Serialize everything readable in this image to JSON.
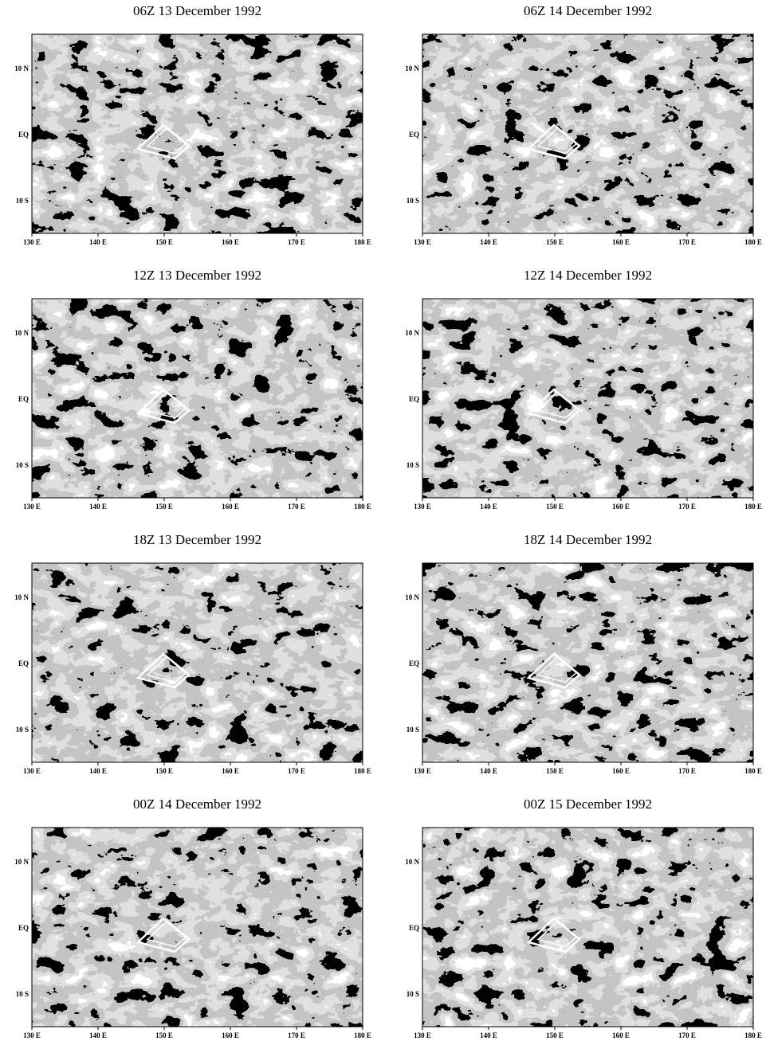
{
  "panels": [
    {
      "title": "06Z 13 December 1992"
    },
    {
      "title": "06Z 14 December 1992"
    },
    {
      "title": "12Z 13 December 1992"
    },
    {
      "title": "12Z 14 December 1992"
    },
    {
      "title": "18Z 13 December 1992"
    },
    {
      "title": "18Z 14 December 1992"
    },
    {
      "title": "00Z 14 December 1992"
    },
    {
      "title": "00Z 15 December 1992"
    }
  ],
  "y_labels": [
    "10 N",
    "EQ",
    "10 S"
  ],
  "x_labels": [
    "130 E",
    "140 E",
    "150 E",
    "160 E",
    "170 E",
    "180 E"
  ]
}
